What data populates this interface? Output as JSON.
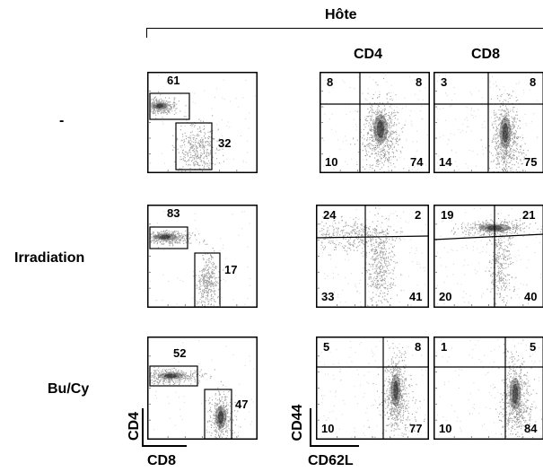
{
  "header": {
    "host": "Hôte",
    "cd4": "CD4",
    "cd8": "CD8"
  },
  "rows": [
    {
      "label": "-",
      "cd4cd8": [
        "61",
        "32"
      ],
      "cd4": [
        "8",
        "8",
        "10",
        "74"
      ],
      "cd8": [
        "3",
        "8",
        "14",
        "75"
      ]
    },
    {
      "label": "Irradiation",
      "cd4cd8": [
        "83",
        "17"
      ],
      "cd4": [
        "24",
        "2",
        "33",
        "41"
      ],
      "cd8": [
        "19",
        "21",
        "20",
        "40"
      ]
    },
    {
      "label": "Bu/Cy",
      "cd4cd8": [
        "52",
        "47"
      ],
      "cd4": [
        "5",
        "8",
        "10",
        "77"
      ],
      "cd8": [
        "1",
        "5",
        "10",
        "84"
      ]
    }
  ],
  "axes": {
    "y1": "CD4",
    "x1": "CD8",
    "y2": "CD44",
    "x2": "CD62L"
  }
}
